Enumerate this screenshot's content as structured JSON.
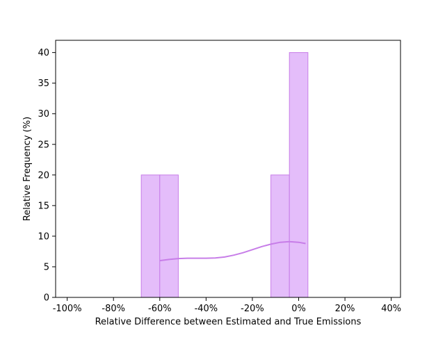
{
  "chart_data": {
    "type": "bar",
    "xlabel": "Relative Difference between Estimated and True Emissions",
    "ylabel": "Relative Frequency (%)",
    "xlim": [
      -105,
      44
    ],
    "ylim": [
      0,
      42
    ],
    "x_ticks": [
      -100,
      -80,
      -60,
      -40,
      -20,
      0,
      20,
      40
    ],
    "x_tick_labels": [
      "-100%",
      "-80%",
      "-60%",
      "-40%",
      "-20%",
      "0%",
      "20%",
      "40%"
    ],
    "y_ticks": [
      0,
      5,
      10,
      15,
      20,
      25,
      30,
      35,
      40
    ],
    "y_tick_labels": [
      "0",
      "5",
      "10",
      "15",
      "20",
      "25",
      "30",
      "35",
      "40"
    ],
    "bin_edges": [
      -100,
      -92,
      -84,
      -76,
      -68,
      -60,
      -52,
      -44,
      -36,
      -28,
      -20,
      -12,
      -4,
      4,
      12,
      20,
      28,
      36
    ],
    "values": [
      0,
      0,
      0,
      0,
      20,
      20,
      0,
      0,
      0,
      0,
      0,
      20,
      40,
      0,
      0,
      0,
      0
    ],
    "kde": {
      "x": [
        -60,
        -56,
        -52,
        -48,
        -44,
        -40,
        -36,
        -32,
        -28,
        -24,
        -20,
        -16,
        -12,
        -8,
        -4,
        0,
        3
      ],
      "y": [
        6.0,
        6.2,
        6.35,
        6.4,
        6.4,
        6.4,
        6.45,
        6.6,
        6.9,
        7.3,
        7.8,
        8.3,
        8.7,
        9.0,
        9.1,
        9.0,
        8.8
      ]
    },
    "colors": {
      "bar_fill": "#e4bdfa",
      "bar_edge": "#c77de8",
      "kde": "#c77de8"
    }
  }
}
